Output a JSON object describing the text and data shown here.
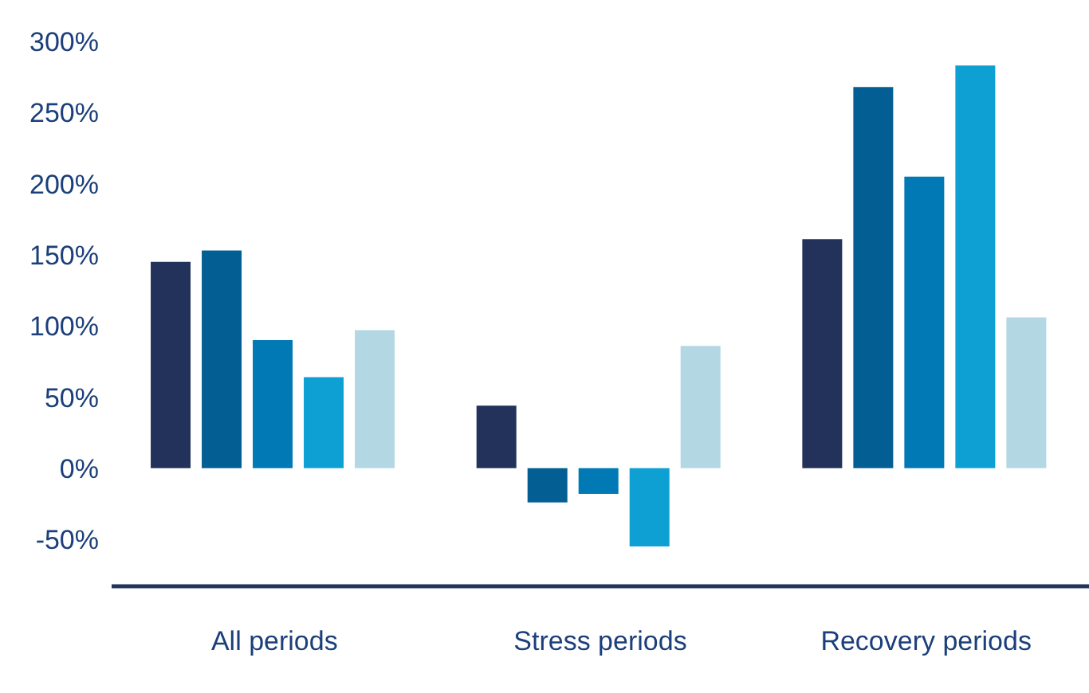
{
  "chart_data": {
    "type": "bar",
    "categories": [
      "All periods",
      "Stress periods",
      "Recovery periods"
    ],
    "series": [
      {
        "color": "#22325a",
        "values": [
          145,
          44,
          161
        ]
      },
      {
        "color": "#035f93",
        "values": [
          153,
          -24,
          268
        ]
      },
      {
        "color": "#0079b5",
        "values": [
          90,
          -18,
          205
        ]
      },
      {
        "color": "#0ea0d3",
        "values": [
          64,
          -55,
          283
        ]
      },
      {
        "color": "#b3d8e4",
        "values": [
          97,
          86,
          106
        ]
      }
    ],
    "ylim": [
      -83,
      300
    ],
    "yticks": [
      {
        "value": -50,
        "label": "-50%"
      },
      {
        "value": 0,
        "label": "0%"
      },
      {
        "value": 50,
        "label": "50%"
      },
      {
        "value": 100,
        "label": "100%"
      },
      {
        "value": 150,
        "label": "150%"
      },
      {
        "value": 200,
        "label": "200%"
      },
      {
        "value": 250,
        "label": "250%"
      },
      {
        "value": 300,
        "label": "300%"
      }
    ],
    "grid": false,
    "legend": false
  }
}
